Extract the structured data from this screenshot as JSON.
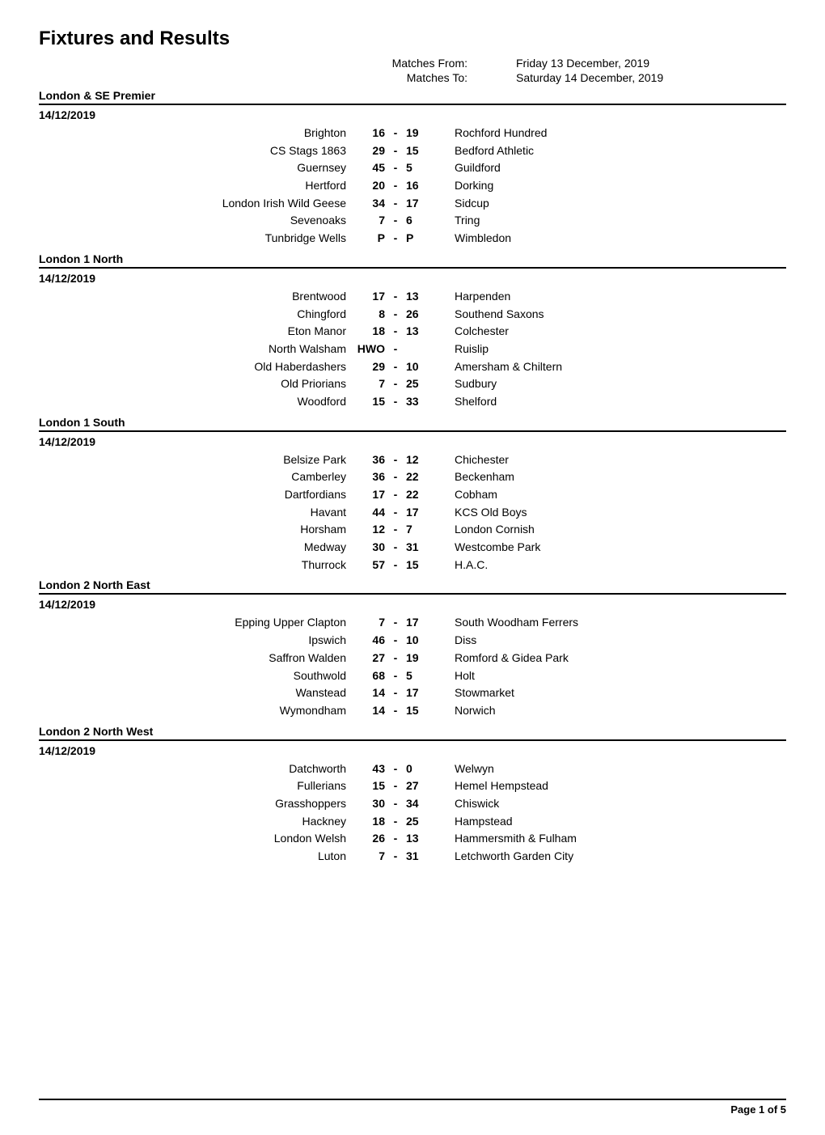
{
  "title": "Fixtures and Results",
  "meta": {
    "from_label": "Matches From:",
    "from_value": "Friday 13 December, 2019",
    "to_label": "Matches To:",
    "to_value": "Saturday 14 December, 2019"
  },
  "leagues": [
    {
      "name": "London & SE Premier",
      "date": "14/12/2019",
      "fixtures": [
        {
          "home": "Brighton",
          "hs": "16",
          "as": "19",
          "away": "Rochford Hundred"
        },
        {
          "home": "CS Stags 1863",
          "hs": "29",
          "as": "15",
          "away": "Bedford Athletic"
        },
        {
          "home": "Guernsey",
          "hs": "45",
          "as": "5",
          "away": "Guildford"
        },
        {
          "home": "Hertford",
          "hs": "20",
          "as": "16",
          "away": "Dorking"
        },
        {
          "home": "London Irish Wild Geese",
          "hs": "34",
          "as": "17",
          "away": "Sidcup"
        },
        {
          "home": "Sevenoaks",
          "hs": "7",
          "as": "6",
          "away": "Tring"
        },
        {
          "home": "Tunbridge Wells",
          "hs": "P",
          "as": "P",
          "away": "Wimbledon"
        }
      ]
    },
    {
      "name": "London 1 North",
      "date": "14/12/2019",
      "fixtures": [
        {
          "home": "Brentwood",
          "hs": "17",
          "as": "13",
          "away": "Harpenden"
        },
        {
          "home": "Chingford",
          "hs": "8",
          "as": "26",
          "away": "Southend Saxons"
        },
        {
          "home": "Eton Manor",
          "hs": "18",
          "as": "13",
          "away": "Colchester"
        },
        {
          "home": "North Walsham",
          "hs": "HWO",
          "as": "",
          "away": "Ruislip"
        },
        {
          "home": "Old Haberdashers",
          "hs": "29",
          "as": "10",
          "away": "Amersham & Chiltern"
        },
        {
          "home": "Old Priorians",
          "hs": "7",
          "as": "25",
          "away": "Sudbury"
        },
        {
          "home": "Woodford",
          "hs": "15",
          "as": "33",
          "away": "Shelford"
        }
      ]
    },
    {
      "name": "London 1 South",
      "date": "14/12/2019",
      "fixtures": [
        {
          "home": "Belsize Park",
          "hs": "36",
          "as": "12",
          "away": "Chichester"
        },
        {
          "home": "Camberley",
          "hs": "36",
          "as": "22",
          "away": "Beckenham"
        },
        {
          "home": "Dartfordians",
          "hs": "17",
          "as": "22",
          "away": "Cobham"
        },
        {
          "home": "Havant",
          "hs": "44",
          "as": "17",
          "away": "KCS Old Boys"
        },
        {
          "home": "Horsham",
          "hs": "12",
          "as": "7",
          "away": "London Cornish"
        },
        {
          "home": "Medway",
          "hs": "30",
          "as": "31",
          "away": "Westcombe Park"
        },
        {
          "home": "Thurrock",
          "hs": "57",
          "as": "15",
          "away": "H.A.C."
        }
      ]
    },
    {
      "name": "London 2 North East",
      "date": "14/12/2019",
      "fixtures": [
        {
          "home": "Epping Upper Clapton",
          "hs": "7",
          "as": "17",
          "away": "South Woodham Ferrers"
        },
        {
          "home": "Ipswich",
          "hs": "46",
          "as": "10",
          "away": "Diss"
        },
        {
          "home": "Saffron Walden",
          "hs": "27",
          "as": "19",
          "away": "Romford & Gidea Park"
        },
        {
          "home": "Southwold",
          "hs": "68",
          "as": "5",
          "away": "Holt"
        },
        {
          "home": "Wanstead",
          "hs": "14",
          "as": "17",
          "away": "Stowmarket"
        },
        {
          "home": "Wymondham",
          "hs": "14",
          "as": "15",
          "away": "Norwich"
        }
      ]
    },
    {
      "name": "London 2 North West",
      "date": "14/12/2019",
      "fixtures": [
        {
          "home": "Datchworth",
          "hs": "43",
          "as": "0",
          "away": "Welwyn"
        },
        {
          "home": "Fullerians",
          "hs": "15",
          "as": "27",
          "away": "Hemel Hempstead"
        },
        {
          "home": "Grasshoppers",
          "hs": "30",
          "as": "34",
          "away": "Chiswick"
        },
        {
          "home": "Hackney",
          "hs": "18",
          "as": "25",
          "away": "Hampstead"
        },
        {
          "home": "London Welsh",
          "hs": "26",
          "as": "13",
          "away": "Hammersmith & Fulham"
        },
        {
          "home": "Luton",
          "hs": "7",
          "as": "31",
          "away": "Letchworth Garden City"
        }
      ]
    }
  ],
  "footer": "Page 1 of 5"
}
